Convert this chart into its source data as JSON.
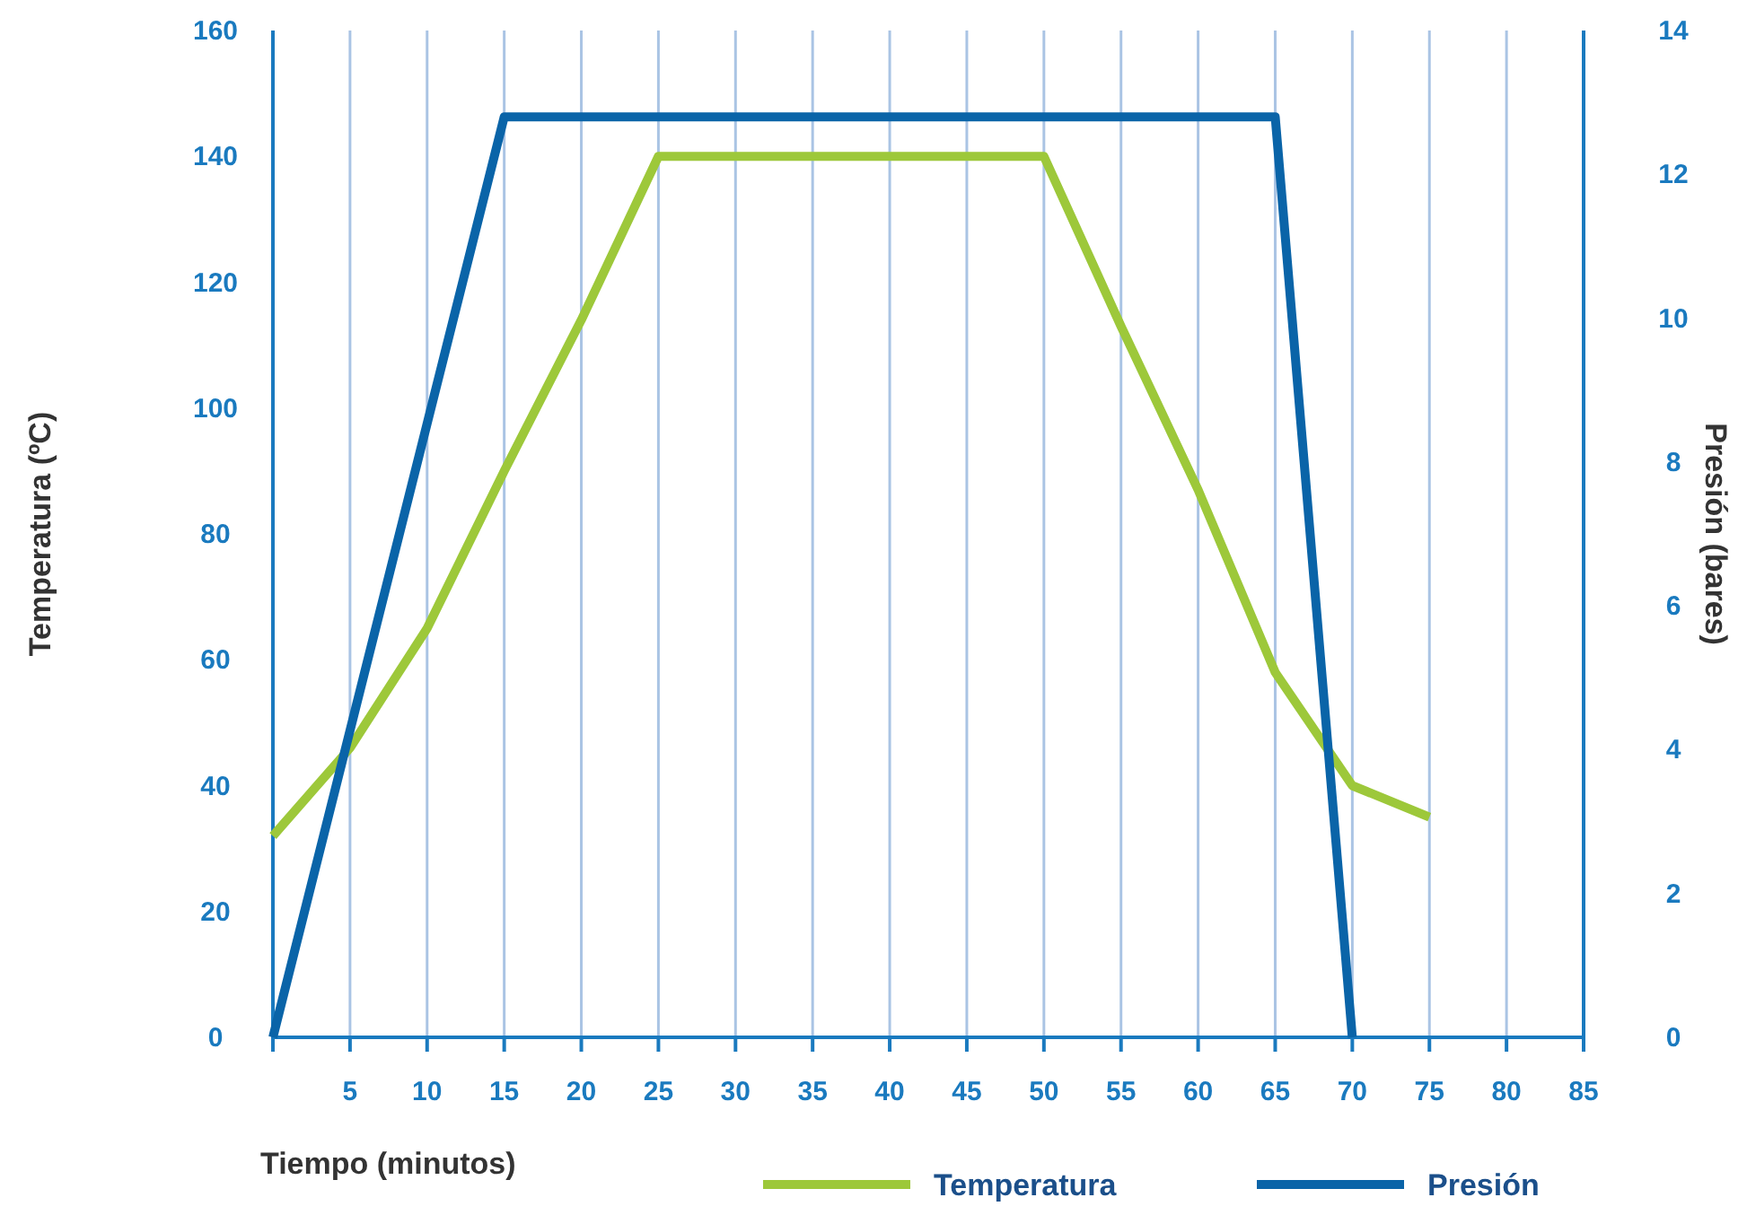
{
  "chart_data": {
    "type": "line",
    "xlabel": "Tiempo (minutos)",
    "ylabel": "Temperatura (ºC)",
    "y2label": "Presión (bares)",
    "xlim": [
      0,
      85
    ],
    "xticks": [
      {
        "value": 0,
        "label": null
      },
      5,
      10,
      15,
      20,
      25,
      30,
      35,
      40,
      45,
      50,
      55,
      60,
      65,
      70,
      75,
      80,
      85
    ],
    "ylim": [
      0,
      160
    ],
    "yticks": [
      0,
      20,
      40,
      60,
      80,
      100,
      120,
      140,
      160
    ],
    "y2lim": [
      0,
      14
    ],
    "y2ticks": [
      0,
      2,
      4,
      6,
      8,
      10,
      12,
      14
    ],
    "grid": "x",
    "legend": "bottom",
    "line_style": "solid",
    "series": [
      {
        "name": "Temperatura",
        "color": "#9dc83a",
        "x": [
          0,
          5,
          10,
          15,
          20,
          25,
          50,
          55,
          60,
          65,
          70,
          75
        ],
        "values": [
          32,
          46,
          65,
          90,
          114,
          140,
          140,
          113,
          87,
          58,
          40,
          35
        ]
      },
      {
        "name": "Presión",
        "color": "#0a64a8",
        "axis": "y2",
        "x": [
          0,
          15,
          65,
          70
        ],
        "values": [
          0,
          12.8,
          12.8,
          0
        ]
      }
    ]
  }
}
